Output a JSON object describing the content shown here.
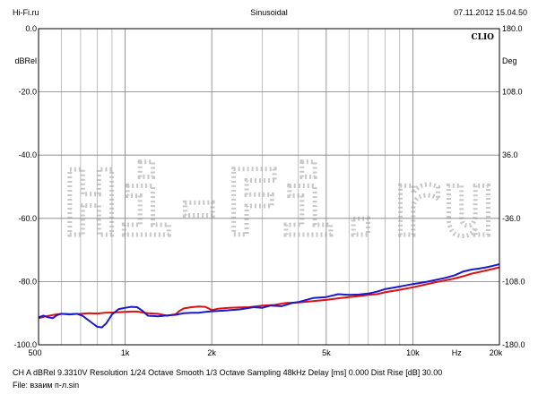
{
  "header": {
    "left": "Hi-Fi.ru",
    "center": "Sinusoidal",
    "right": "07.11.2012 15.04.50"
  },
  "footer": {
    "settings": "CH A   dBRel 9.3310V   Resolution 1/24 Octave    Smooth 1/3 Octave    Sampling 48kHz    Delay [ms] 0.000    Dist Rise [dB] 30.00",
    "file": "File: взаим п-л.sin"
  },
  "chart_data": {
    "type": "line",
    "brand": "CLIO",
    "watermark": "Hi-Fi.ru",
    "x_scale": "log",
    "xlim": [
      500,
      20000
    ],
    "ylim": [
      -100,
      0
    ],
    "y2lim": [
      -180,
      180
    ],
    "ylabel": "dBRel",
    "y2label": "Deg",
    "xunit": "Hz",
    "grid": true,
    "x_ticks": [
      {
        "value": 500,
        "label": "500"
      },
      {
        "value": 1000,
        "label": "1k"
      },
      {
        "value": 2000,
        "label": "2k"
      },
      {
        "value": 5000,
        "label": "5k"
      },
      {
        "value": 10000,
        "label": "10k"
      },
      {
        "value": 20000,
        "label": "20k"
      }
    ],
    "x_minor": [
      600,
      700,
      800,
      900,
      3000,
      4000,
      6000,
      7000,
      8000,
      9000
    ],
    "y_ticks": [
      {
        "value": 0,
        "label": "0.0"
      },
      {
        "value": -20,
        "label": "-20.0"
      },
      {
        "value": -40,
        "label": "-40.0"
      },
      {
        "value": -60,
        "label": "-60.0"
      },
      {
        "value": -80,
        "label": "-80.0"
      },
      {
        "value": -100,
        "label": "-100.0"
      }
    ],
    "y2_ticks": [
      {
        "value": 180,
        "label": "180.0"
      },
      {
        "value": 108,
        "label": "108.0"
      },
      {
        "value": 36,
        "label": "36.0"
      },
      {
        "value": -36,
        "label": "-36.0"
      },
      {
        "value": -108,
        "label": "-108.0"
      },
      {
        "value": -180,
        "label": "-180.0"
      }
    ],
    "series": [
      {
        "color": "#dd1111",
        "points": [
          [
            500,
            -91.6
          ],
          [
            530,
            -91.0
          ],
          [
            560,
            -90.6
          ],
          [
            600,
            -90.2
          ],
          [
            650,
            -90.3
          ],
          [
            700,
            -90.2
          ],
          [
            750,
            -90.0
          ],
          [
            800,
            -90.1
          ],
          [
            850,
            -89.9
          ],
          [
            900,
            -89.8
          ],
          [
            950,
            -89.7
          ],
          [
            1000,
            -89.6
          ],
          [
            1050,
            -89.5
          ],
          [
            1100,
            -89.5
          ],
          [
            1150,
            -89.8
          ],
          [
            1200,
            -90.0
          ],
          [
            1300,
            -90.2
          ],
          [
            1400,
            -90.8
          ],
          [
            1500,
            -90.3
          ],
          [
            1550,
            -89.2
          ],
          [
            1600,
            -88.5
          ],
          [
            1700,
            -88.1
          ],
          [
            1800,
            -87.9
          ],
          [
            1900,
            -88.0
          ],
          [
            2000,
            -89.0
          ],
          [
            2100,
            -88.6
          ],
          [
            2300,
            -88.3
          ],
          [
            2500,
            -88.2
          ],
          [
            2700,
            -88.1
          ],
          [
            3000,
            -87.6
          ],
          [
            3300,
            -87.4
          ],
          [
            3600,
            -86.8
          ],
          [
            4000,
            -86.6
          ],
          [
            4500,
            -86.2
          ],
          [
            5000,
            -85.8
          ],
          [
            5500,
            -85.3
          ],
          [
            6000,
            -84.9
          ],
          [
            6500,
            -84.6
          ],
          [
            7000,
            -84.2
          ],
          [
            7500,
            -84.0
          ],
          [
            8000,
            -83.4
          ],
          [
            9000,
            -82.6
          ],
          [
            10000,
            -81.8
          ],
          [
            11000,
            -81.0
          ],
          [
            12000,
            -80.2
          ],
          [
            13000,
            -79.6
          ],
          [
            14000,
            -79.0
          ],
          [
            15000,
            -78.3
          ],
          [
            16000,
            -77.5
          ],
          [
            18000,
            -76.5
          ],
          [
            20000,
            -75.5
          ]
        ]
      },
      {
        "color": "#1a1acc",
        "points": [
          [
            500,
            -91.3
          ],
          [
            520,
            -90.8
          ],
          [
            540,
            -91.3
          ],
          [
            560,
            -91.6
          ],
          [
            580,
            -90.6
          ],
          [
            600,
            -90.2
          ],
          [
            640,
            -90.4
          ],
          [
            680,
            -90.2
          ],
          [
            710,
            -90.8
          ],
          [
            740,
            -92.0
          ],
          [
            770,
            -93.2
          ],
          [
            800,
            -94.3
          ],
          [
            830,
            -94.5
          ],
          [
            860,
            -93.2
          ],
          [
            900,
            -90.4
          ],
          [
            950,
            -88.7
          ],
          [
            1000,
            -88.3
          ],
          [
            1050,
            -88.0
          ],
          [
            1100,
            -88.1
          ],
          [
            1150,
            -89.3
          ],
          [
            1200,
            -90.8
          ],
          [
            1300,
            -91.0
          ],
          [
            1400,
            -90.7
          ],
          [
            1500,
            -90.5
          ],
          [
            1600,
            -90.0
          ],
          [
            1700,
            -89.9
          ],
          [
            1800,
            -89.9
          ],
          [
            1900,
            -89.6
          ],
          [
            2000,
            -89.4
          ],
          [
            2200,
            -89.2
          ],
          [
            2500,
            -88.8
          ],
          [
            2800,
            -88.1
          ],
          [
            3000,
            -88.3
          ],
          [
            3200,
            -87.6
          ],
          [
            3500,
            -87.8
          ],
          [
            3800,
            -86.8
          ],
          [
            4000,
            -86.5
          ],
          [
            4500,
            -85.2
          ],
          [
            5000,
            -84.9
          ],
          [
            5500,
            -84.0
          ],
          [
            6000,
            -84.2
          ],
          [
            6500,
            -84.1
          ],
          [
            7000,
            -83.8
          ],
          [
            7500,
            -83.2
          ],
          [
            8000,
            -82.4
          ],
          [
            9000,
            -81.6
          ],
          [
            10000,
            -80.8
          ],
          [
            11000,
            -80.2
          ],
          [
            12000,
            -79.5
          ],
          [
            13000,
            -78.8
          ],
          [
            14000,
            -78.0
          ],
          [
            15000,
            -76.8
          ],
          [
            16000,
            -76.2
          ],
          [
            17000,
            -75.9
          ],
          [
            18000,
            -75.5
          ],
          [
            19000,
            -75.0
          ],
          [
            20000,
            -74.5
          ]
        ]
      }
    ]
  }
}
